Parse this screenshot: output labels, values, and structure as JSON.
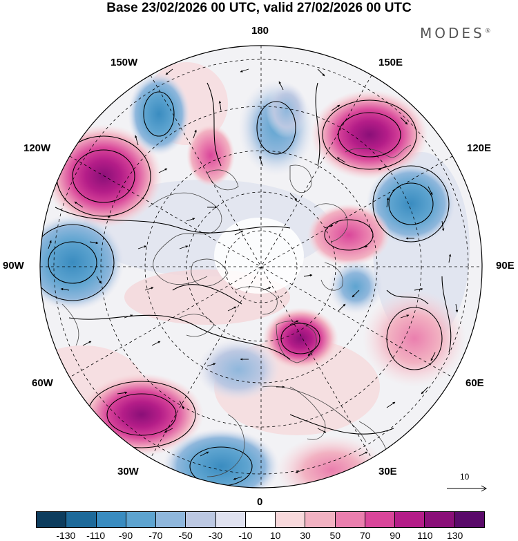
{
  "title": "Base 23/02/2026 00 UTC, valid 27/02/2026 00 UTC",
  "logo": "MODES",
  "longitude_labels": {
    "lon_180": "180",
    "lon_150w": "150W",
    "lon_150e": "150E",
    "lon_120w": "120W",
    "lon_120e": "120E",
    "lon_90w": "90W",
    "lon_90e": "90E",
    "lon_60w": "60W",
    "lon_60e": "60E",
    "lon_30w": "30W",
    "lon_30e": "30E",
    "lon_0": "0"
  },
  "wind_scale_label": "10",
  "colorbar": {
    "colors": [
      "#0d3d5e",
      "#1e6a9a",
      "#3a8cc0",
      "#5ea4d0",
      "#8fb7dc",
      "#bcc8e2",
      "#e0e2f0",
      "#ffffff",
      "#f8d9dc",
      "#f2b2c2",
      "#ea7fae",
      "#d9469a",
      "#b41d88",
      "#8a0f78",
      "#5a0a6a"
    ],
    "ticks": [
      "-130",
      "-110",
      "-90",
      "-70",
      "-50",
      "-30",
      "-10",
      "10",
      "30",
      "50",
      "70",
      "90",
      "110",
      "130"
    ]
  },
  "anomalies": [
    {
      "name": "low-n-pacific-top",
      "value": -50
    },
    {
      "name": "high-west-pacific",
      "value": 110
    },
    {
      "name": "high-alaska-gulf",
      "value": 110
    },
    {
      "name": "low-north-canada",
      "value": -70
    },
    {
      "name": "low-east-siberia",
      "value": -70
    },
    {
      "name": "high-central-siberia",
      "value": 70
    },
    {
      "name": "low-west-siberia",
      "value": -50
    },
    {
      "name": "high-scandinavia",
      "value": 90
    },
    {
      "name": "high-central-asia",
      "value": 50
    },
    {
      "name": "low-north-atlantic",
      "value": -90
    },
    {
      "name": "high-mid-atlantic",
      "value": 90
    },
    {
      "name": "low-europe",
      "value": -30
    },
    {
      "name": "high-mediterranean",
      "value": 50
    },
    {
      "name": "high-pacific-ridge",
      "value": 50
    }
  ]
}
